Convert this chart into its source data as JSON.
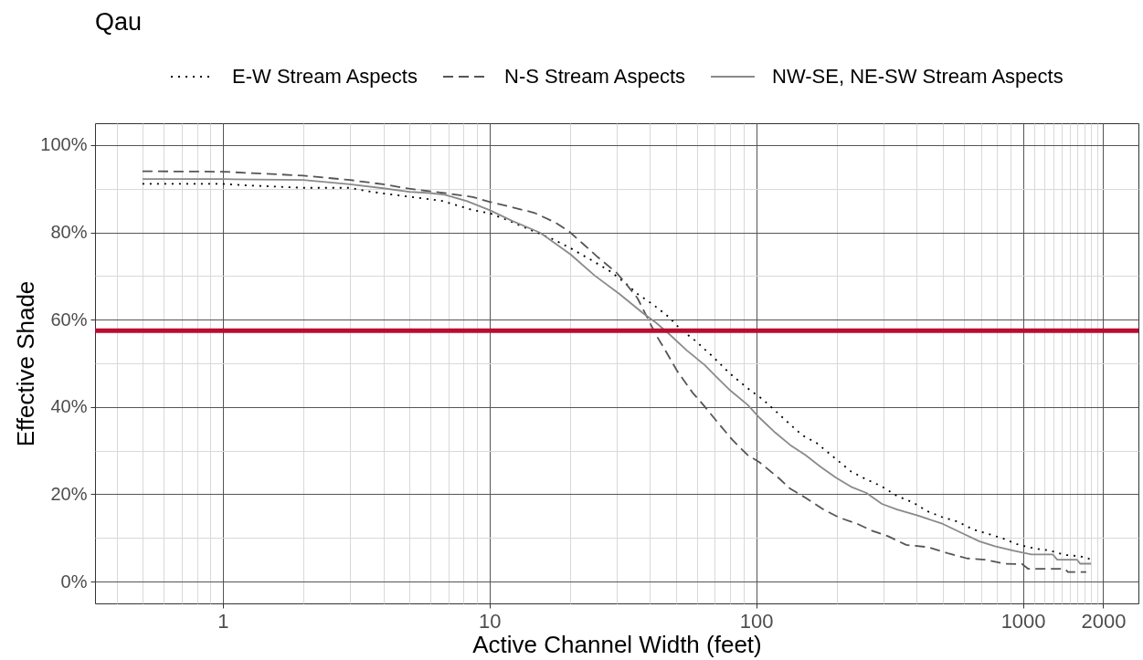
{
  "chart_data": {
    "type": "line",
    "title": "Qau",
    "xlabel": "Active Channel Width (feet)",
    "ylabel": "Effective Shade",
    "log": "x",
    "grid": true,
    "legend": "top",
    "xlim": [
      0.332,
      2710
    ],
    "xticks": [
      {
        "value": 0.4,
        "label": null
      },
      {
        "value": 0.5,
        "label": null
      },
      {
        "value": 0.6,
        "label": null
      },
      {
        "value": 0.7,
        "label": null
      },
      {
        "value": 0.8,
        "label": null
      },
      {
        "value": 0.9,
        "label": null
      },
      1,
      {
        "value": 2,
        "label": null
      },
      {
        "value": 3,
        "label": null
      },
      {
        "value": 4,
        "label": null
      },
      {
        "value": 5,
        "label": null
      },
      {
        "value": 6,
        "label": null
      },
      {
        "value": 7,
        "label": null
      },
      {
        "value": 8,
        "label": null
      },
      {
        "value": 9,
        "label": null
      },
      10,
      {
        "value": 20,
        "label": null
      },
      {
        "value": 30,
        "label": null
      },
      {
        "value": 40,
        "label": null
      },
      {
        "value": 50,
        "label": null
      },
      {
        "value": 60,
        "label": null
      },
      {
        "value": 70,
        "label": null
      },
      {
        "value": 80,
        "label": null
      },
      {
        "value": 90,
        "label": null
      },
      100,
      {
        "value": 200,
        "label": null
      },
      {
        "value": 300,
        "label": null
      },
      {
        "value": 400,
        "label": null
      },
      {
        "value": 500,
        "label": null
      },
      {
        "value": 600,
        "label": null
      },
      {
        "value": 700,
        "label": null
      },
      {
        "value": 800,
        "label": null
      },
      {
        "value": 900,
        "label": null
      },
      1000,
      {
        "value": 1100,
        "label": null
      },
      {
        "value": 1200,
        "label": null
      },
      {
        "value": 1300,
        "label": null
      },
      {
        "value": 1400,
        "label": null
      },
      {
        "value": 1500,
        "label": null
      },
      {
        "value": 1600,
        "label": null
      },
      {
        "value": 1700,
        "label": null
      },
      {
        "value": 1800,
        "label": null
      },
      {
        "value": 1900,
        "label": null
      },
      2000
    ],
    "ylim": [
      -5,
      105
    ],
    "yticks": [
      {
        "value": 0,
        "label": "0%"
      },
      {
        "value": 10,
        "label": null
      },
      {
        "value": 20,
        "label": "20%"
      },
      {
        "value": 30,
        "label": null
      },
      {
        "value": 40,
        "label": "40%"
      },
      {
        "value": 50,
        "label": null
      },
      {
        "value": 60,
        "label": "60%"
      },
      {
        "value": 70,
        "label": null
      },
      {
        "value": 80,
        "label": "80%"
      },
      {
        "value": 90,
        "label": null
      },
      {
        "value": 100,
        "label": "100%"
      }
    ],
    "ref_lines": [
      {
        "axis": "y",
        "value": 57.5,
        "color": "#ba0c2f"
      }
    ],
    "series": [
      {
        "name": "E-W Stream Aspects",
        "color": "#000000",
        "line_style": "dotted",
        "x": [
          0.5,
          1,
          1.2,
          2,
          3,
          3.5,
          4.4,
          5.1,
          6.65,
          8.66,
          10,
          11.9,
          14.7,
          17.2,
          20.1,
          24.8,
          28.3,
          32.3,
          35.9,
          41,
          46.8,
          51.9,
          59.3,
          69.4,
          79.2,
          92.8,
          106,
          121,
          134,
          149,
          168,
          197,
          227,
          259,
          296,
          337,
          385,
          439,
          501,
          571,
          652,
          743,
          848,
          967,
          1104,
          1260,
          1437,
          1639,
          1800
        ],
        "values": [
          91.1,
          91.1,
          90.8,
          90.2,
          90.2,
          89.4,
          88.6,
          88.1,
          87.2,
          85.1,
          84.4,
          82.6,
          80.2,
          78.5,
          76.4,
          73.2,
          71.1,
          68.4,
          65.9,
          63.5,
          60.7,
          57.9,
          55.1,
          51.3,
          47.8,
          44.3,
          41.7,
          38.5,
          36,
          33.5,
          31.8,
          28.3,
          25.2,
          23.4,
          21.8,
          19.6,
          18.2,
          16.1,
          14.7,
          13.7,
          11.9,
          10.9,
          9.8,
          8.4,
          7.6,
          7.1,
          6.1,
          5.8,
          5.1
        ]
      },
      {
        "name": "N-S Stream Aspects",
        "color": "#555555",
        "line_style": "dashed",
        "x": [
          0.5,
          1,
          2,
          3,
          4,
          5,
          7,
          8.66,
          10,
          11.9,
          14.7,
          17.6,
          19.9,
          22.4,
          25.5,
          29.9,
          32.3,
          35.9,
          38.9,
          42.1,
          45.6,
          50.6,
          57.7,
          64.1,
          71.2,
          81.3,
          92.8,
          103,
          121,
          134,
          153,
          179,
          204,
          240,
          273,
          312,
          365,
          439,
          528,
          618,
          724,
          848,
          994,
          1047,
          1437,
          1475,
          1727
        ],
        "values": [
          94,
          93.9,
          93,
          92,
          91,
          90,
          88.9,
          88.1,
          87,
          85.9,
          84.5,
          82.3,
          80.2,
          77.4,
          74.3,
          70.8,
          68.4,
          64.9,
          60.7,
          56.5,
          53,
          48.2,
          43.3,
          40.1,
          36.7,
          32.5,
          29,
          27.3,
          23.8,
          21.3,
          19.2,
          16.5,
          14.7,
          13.2,
          11.6,
          10.4,
          8.4,
          7.9,
          6.4,
          5.3,
          5,
          4.1,
          4,
          2.9,
          2.9,
          2.2,
          2.2
        ]
      },
      {
        "name": "NW-SE, NE-SW Stream Aspects",
        "color": "#8a8a8a",
        "line_style": "solid",
        "x": [
          0.5,
          1,
          2,
          3,
          4,
          5,
          6,
          6.8,
          8.2,
          10,
          12.2,
          15.5,
          20.1,
          24.8,
          30.7,
          37.8,
          42.1,
          46.8,
          54.8,
          64.1,
          71.2,
          79.2,
          92.8,
          103,
          118,
          134,
          153,
          175,
          199,
          227,
          259,
          296,
          337,
          405,
          501,
          586,
          688,
          785,
          918,
          1076,
          1293,
          1345,
          1597,
          1639,
          1800
        ],
        "values": [
          92.2,
          92.2,
          92,
          91,
          90.1,
          89.3,
          89,
          88.6,
          87.2,
          85.1,
          82.6,
          79.9,
          75,
          70.1,
          65.9,
          61.4,
          59.3,
          56.9,
          53,
          49.6,
          46.8,
          44,
          40.5,
          37.5,
          34.1,
          31.3,
          29,
          26.2,
          23.8,
          21.7,
          20.3,
          17.8,
          16.5,
          15.1,
          13.2,
          11.2,
          9.2,
          8.1,
          7.1,
          6.2,
          6.2,
          5,
          5,
          4.1,
          4.1
        ]
      }
    ]
  }
}
